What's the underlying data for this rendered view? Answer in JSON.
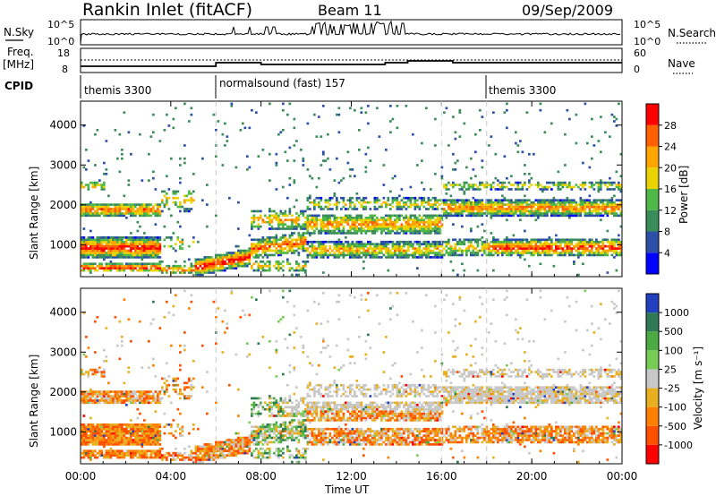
{
  "header": {
    "station": "Rankin Inlet (fitACF)",
    "beam": "Beam 11",
    "date": "09/Sep/2009"
  },
  "panels": {
    "nsky": {
      "label": "N.Sky",
      "ticks": [
        "10^5",
        "10^0"
      ],
      "right_label": "N.Search",
      "right_ticks": [
        "10^5",
        "10^0"
      ]
    },
    "freq": {
      "label_top": "Freq.",
      "label_bottom": "[MHz]",
      "ticks": [
        "18",
        "8"
      ],
      "right_label": "Nave",
      "right_ticks": [
        "60",
        "0"
      ]
    },
    "cpid": {
      "label": "CPID",
      "segments": [
        "themis 3300",
        "normalsound (fast) 157",
        "themis 3300"
      ]
    }
  },
  "chart_data": [
    {
      "type": "heatmap",
      "name": "power",
      "ylabel": "Slant Range [km]",
      "yticks": [
        "1000",
        "2000",
        "3000",
        "4000"
      ],
      "ylim": [
        200,
        4600
      ],
      "colorbar": {
        "label": "Power [dB]",
        "ticks": [
          "4",
          "8",
          "12",
          "16",
          "20",
          "24",
          "28"
        ],
        "colors": [
          "#0000ff",
          "#2b4fa8",
          "#3a8c5a",
          "#4fb848",
          "#e8d400",
          "#ffa500",
          "#ff6000",
          "#ff0000"
        ]
      }
    },
    {
      "type": "heatmap",
      "name": "velocity",
      "ylabel": "Slant Range [km]",
      "yticks": [
        "1000",
        "2000",
        "3000",
        "4000"
      ],
      "ylim": [
        200,
        4600
      ],
      "colorbar": {
        "label": "Velocity [m s⁻¹]",
        "ticks": [
          "1000",
          "500",
          "100",
          "25",
          "-25",
          "-100",
          "-500",
          "-1000"
        ],
        "colors": [
          "#2040c0",
          "#2f7a55",
          "#4caa44",
          "#77cc55",
          "#c8c8c8",
          "#e8b020",
          "#ff8000",
          "#ff5000",
          "#ff0000"
        ]
      }
    }
  ],
  "xaxis": {
    "label": "Time UT",
    "ticks": [
      "00:00",
      "04:00",
      "08:00",
      "12:00",
      "16:00",
      "20:00",
      "00:00"
    ],
    "xlim_hours": [
      0,
      24
    ]
  },
  "mode_changes_hours": [
    6,
    18
  ]
}
